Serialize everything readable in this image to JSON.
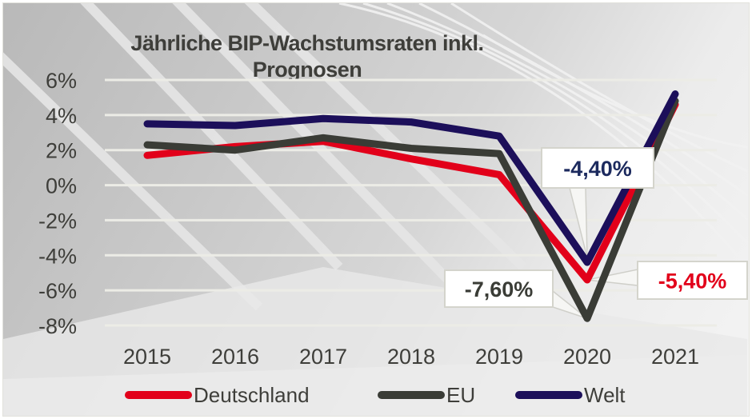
{
  "chart_data": {
    "type": "line",
    "title": "Jährliche BIP-Wachstumsraten inkl. Prognosen",
    "title_lines": [
      "Jährliche BIP-Wachstumsraten inkl.",
      "Prognosen"
    ],
    "xlabel": "",
    "ylabel": "",
    "categories": [
      "2015",
      "2016",
      "2017",
      "2018",
      "2019",
      "2020",
      "2021"
    ],
    "ylim": [
      -8,
      6
    ],
    "yticks": [
      6,
      4,
      2,
      0,
      -2,
      -4,
      -6,
      -8
    ],
    "ytick_labels": [
      "6%",
      "4%",
      "2%",
      "0%",
      "-2%",
      "-4%",
      "-6%",
      "-8%"
    ],
    "grid": true,
    "legend_position": "bottom",
    "series": [
      {
        "name": "Deutschland",
        "color": "#e2001a",
        "values": [
          1.7,
          2.2,
          2.5,
          1.5,
          0.6,
          -5.4,
          4.6
        ]
      },
      {
        "name": "EU",
        "color": "#3a3c36",
        "values": [
          2.3,
          2.0,
          2.7,
          2.1,
          1.8,
          -7.6,
          4.8
        ]
      },
      {
        "name": "Welt",
        "color": "#1c0f5a",
        "values": [
          3.5,
          3.4,
          3.8,
          3.6,
          2.8,
          -4.4,
          5.2
        ]
      }
    ],
    "annotations": [
      {
        "series": "Welt",
        "category": "2020",
        "text": "-4,40%",
        "color": "#1c2a5e"
      },
      {
        "series": "EU",
        "category": "2020",
        "text": "-7,60%",
        "color": "#3a3c36"
      },
      {
        "series": "Deutschland",
        "category": "2020",
        "text": "-5,40%",
        "color": "#e2001a"
      }
    ]
  }
}
